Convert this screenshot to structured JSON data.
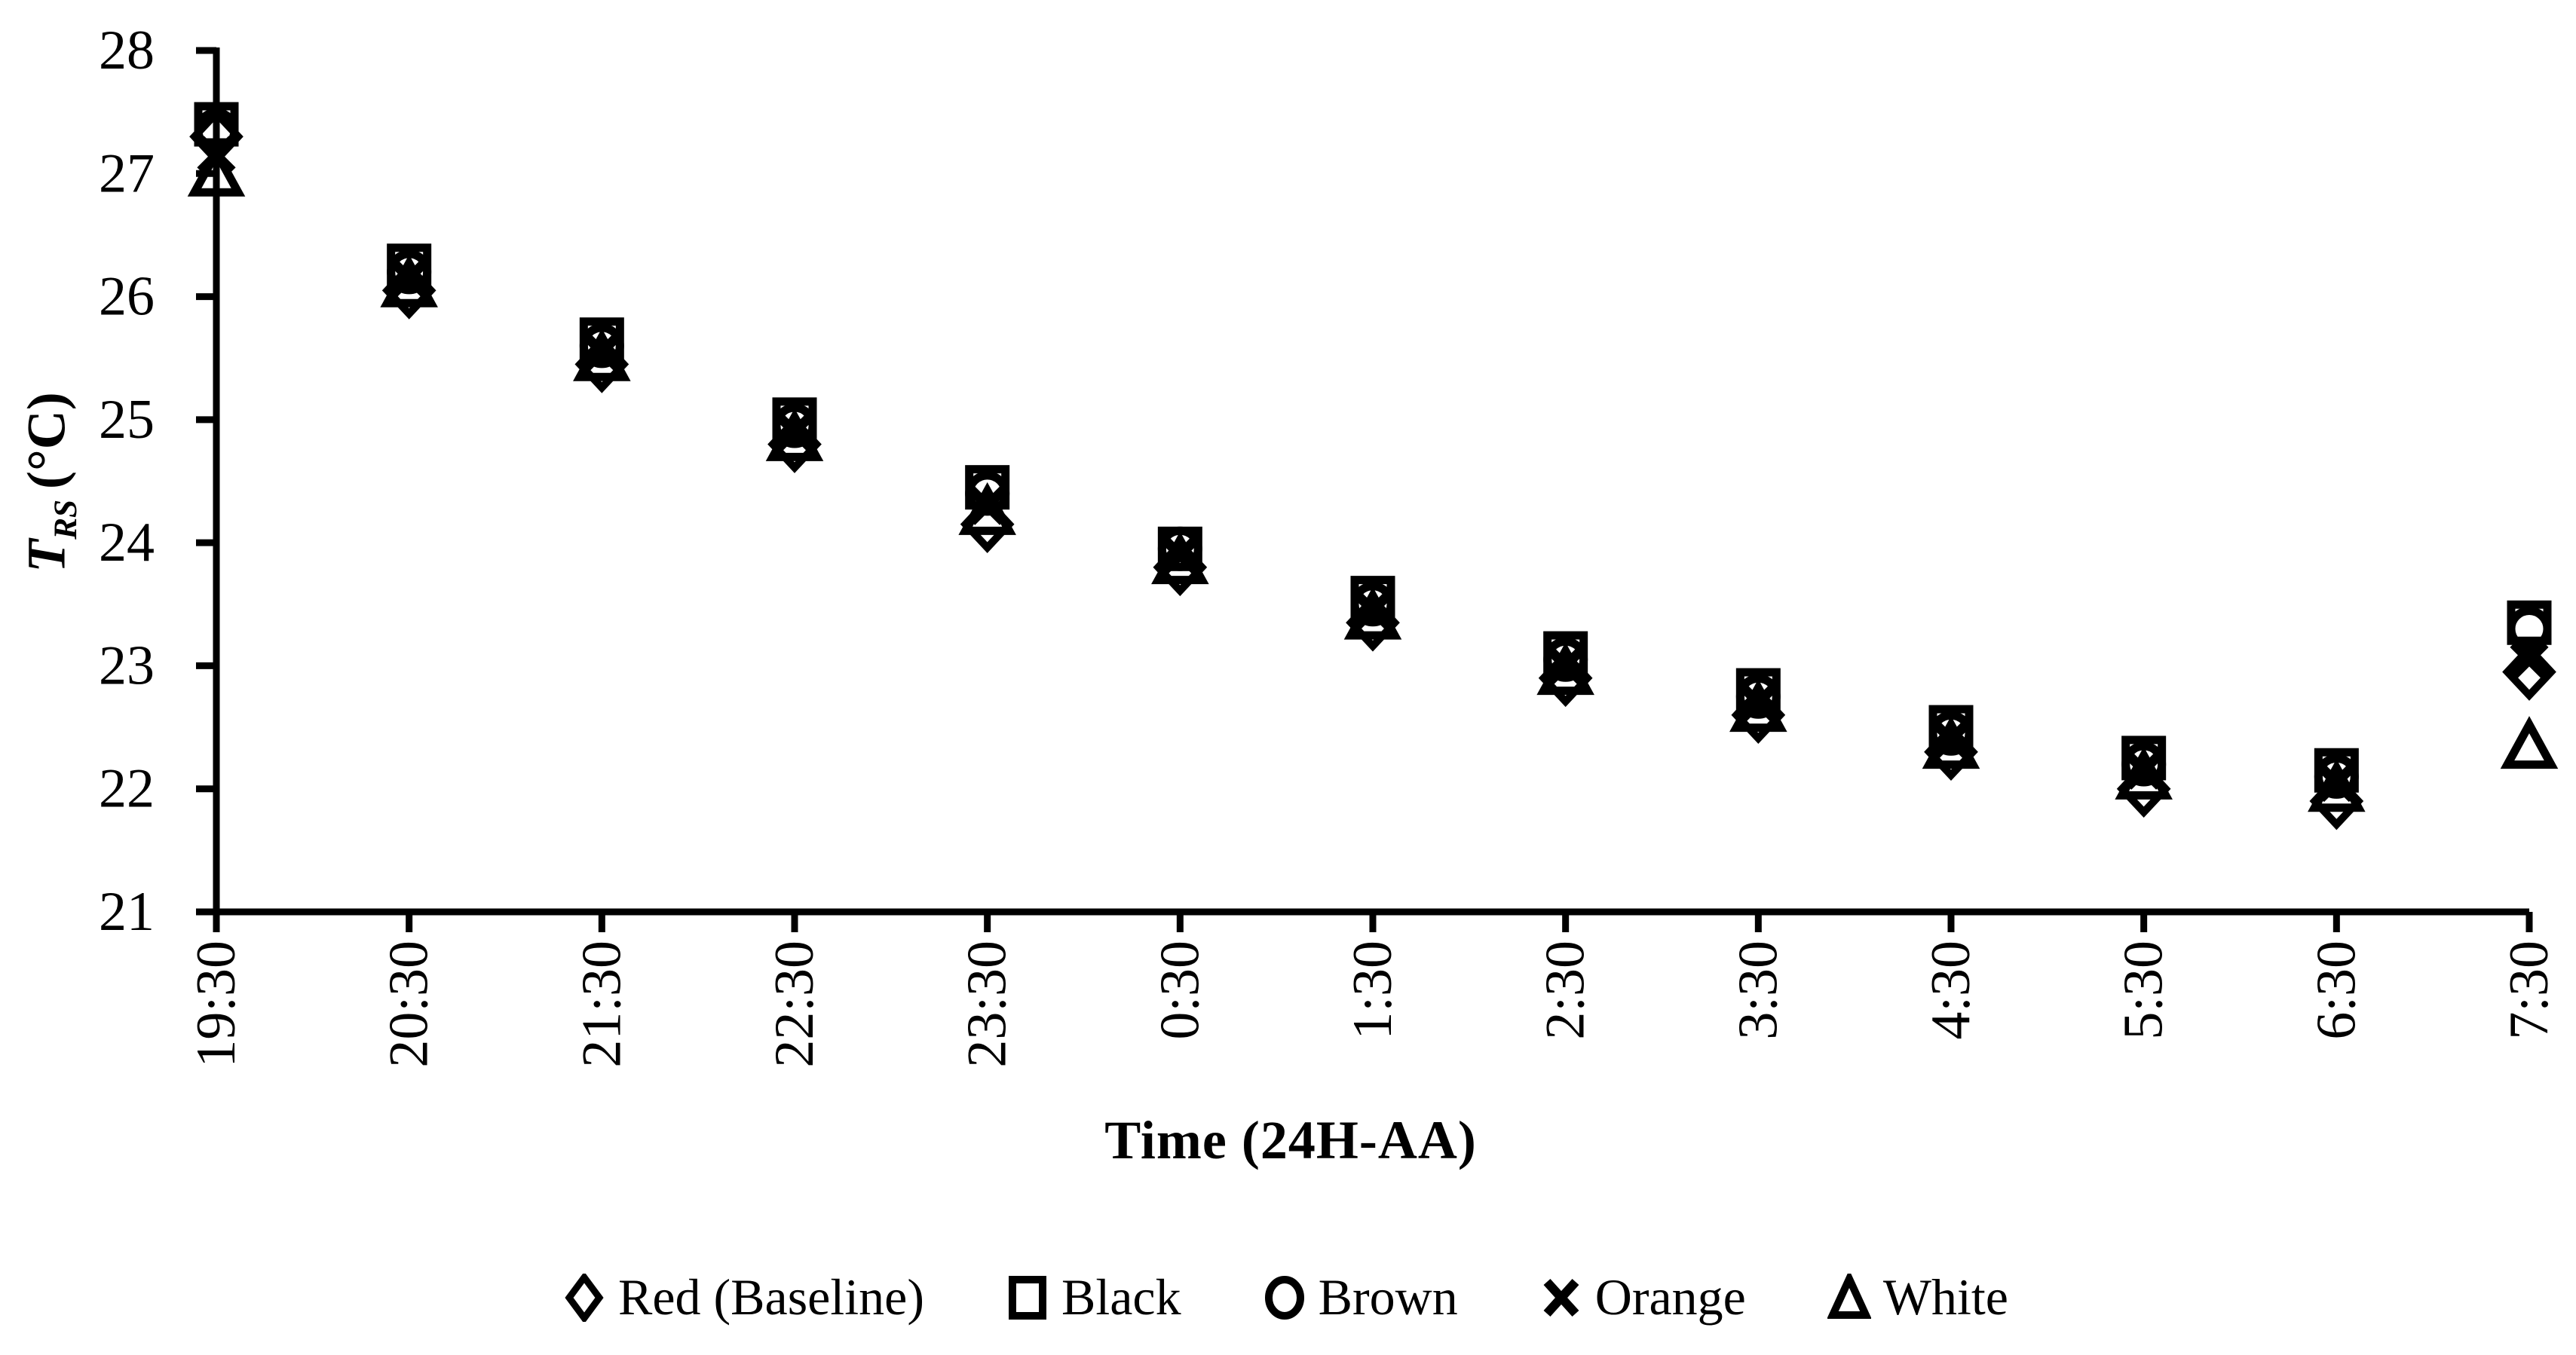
{
  "figure_title": "",
  "colors": {
    "marker": "#000000",
    "axis": "#000000",
    "background": "#ffffff"
  },
  "chart_data": {
    "type": "scatter",
    "title": "",
    "xlabel": "Time (24H-AA)",
    "ylabel": "T_RS (°C)",
    "ylabel_parts": {
      "symbol": "T",
      "subscript": "RS",
      "unit": "(°C)"
    },
    "categories": [
      "19:30",
      "20:30",
      "21:30",
      "22:30",
      "23:30",
      "0:30",
      "1:30",
      "2:30",
      "3:30",
      "4:30",
      "5:30",
      "6:30",
      "7:30"
    ],
    "ylim": [
      21,
      28
    ],
    "yticks": [
      21,
      22,
      23,
      24,
      25,
      26,
      27,
      28
    ],
    "grid": false,
    "legend_position": "bottom",
    "series": [
      {
        "name": "Red (Baseline)",
        "marker": "diamond",
        "values": [
          27.3,
          26.05,
          25.45,
          24.8,
          24.15,
          23.8,
          23.35,
          22.9,
          22.6,
          22.3,
          22.0,
          21.9,
          22.95
        ]
      },
      {
        "name": "Black",
        "marker": "square",
        "values": [
          27.4,
          26.25,
          25.65,
          25.0,
          24.45,
          23.95,
          23.55,
          23.1,
          22.8,
          22.5,
          22.25,
          22.15,
          23.35
        ]
      },
      {
        "name": "Brown",
        "marker": "circle",
        "values": [
          27.35,
          26.2,
          25.6,
          24.95,
          24.4,
          23.95,
          23.5,
          23.05,
          22.75,
          22.45,
          22.2,
          22.1,
          23.3
        ]
      },
      {
        "name": "Orange",
        "marker": "x",
        "values": [
          27.15,
          26.15,
          25.55,
          24.9,
          24.3,
          23.9,
          23.45,
          23.0,
          22.7,
          22.4,
          22.15,
          22.05,
          23.05
        ]
      },
      {
        "name": "White",
        "marker": "triangle",
        "values": [
          27.0,
          26.1,
          25.5,
          24.85,
          24.25,
          23.85,
          23.4,
          22.95,
          22.65,
          22.35,
          22.1,
          22.0,
          22.35
        ]
      }
    ]
  }
}
